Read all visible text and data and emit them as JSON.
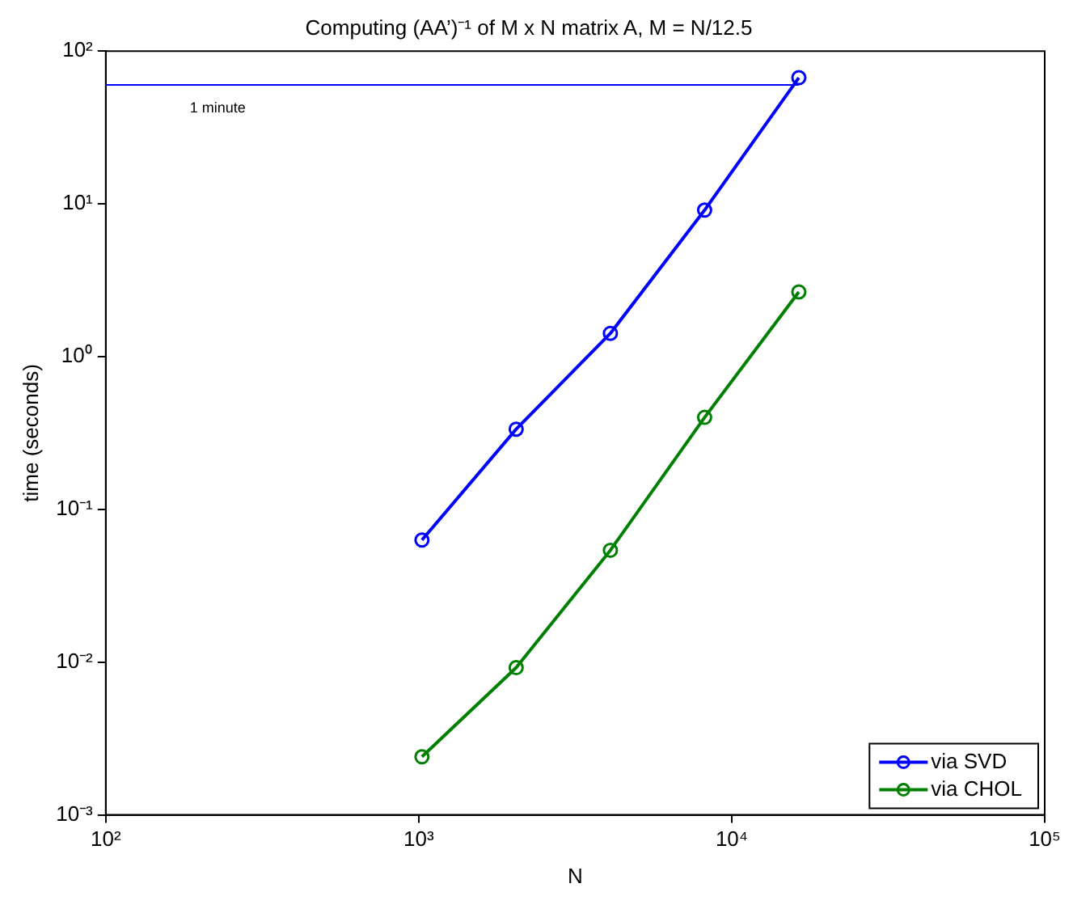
{
  "chart_data": {
    "type": "line",
    "title": "Computing (AA’)⁻¹ of M x N matrix A, M = N/12.5",
    "xlabel": "N",
    "ylabel": "time (seconds)",
    "x": [
      1024,
      2048,
      4096,
      8192,
      16384
    ],
    "series": [
      {
        "name": "via SVD",
        "color": "#0000ff",
        "values": [
          0.063,
          0.335,
          1.42,
          9.1,
          67
        ]
      },
      {
        "name": "via CHOL",
        "color": "#008000",
        "values": [
          0.0024,
          0.0092,
          0.054,
          0.4,
          2.65
        ]
      }
    ],
    "log": "xy",
    "xlim": [
      100,
      100000
    ],
    "ylim": [
      0.001,
      100
    ],
    "xticks": [
      {
        "value": 100,
        "label": "10²"
      },
      {
        "value": 1000,
        "label": "10³"
      },
      {
        "value": 10000,
        "label": "10⁴"
      },
      {
        "value": 100000,
        "label": "10⁵"
      }
    ],
    "yticks": [
      {
        "value": 0.001,
        "label": "10⁻³"
      },
      {
        "value": 0.01,
        "label": "10⁻²"
      },
      {
        "value": 0.1,
        "label": "10⁻¹"
      },
      {
        "value": 1,
        "label": "10⁰"
      },
      {
        "value": 10,
        "label": "10¹"
      },
      {
        "value": 100,
        "label": "10²"
      }
    ],
    "ref_lines": [
      {
        "axis": "y",
        "value": 60,
        "label": "1 minute",
        "color": "#0000ff"
      }
    ],
    "marker": "circle",
    "line_style": "solid",
    "grid": false,
    "legend": "bottom right"
  }
}
